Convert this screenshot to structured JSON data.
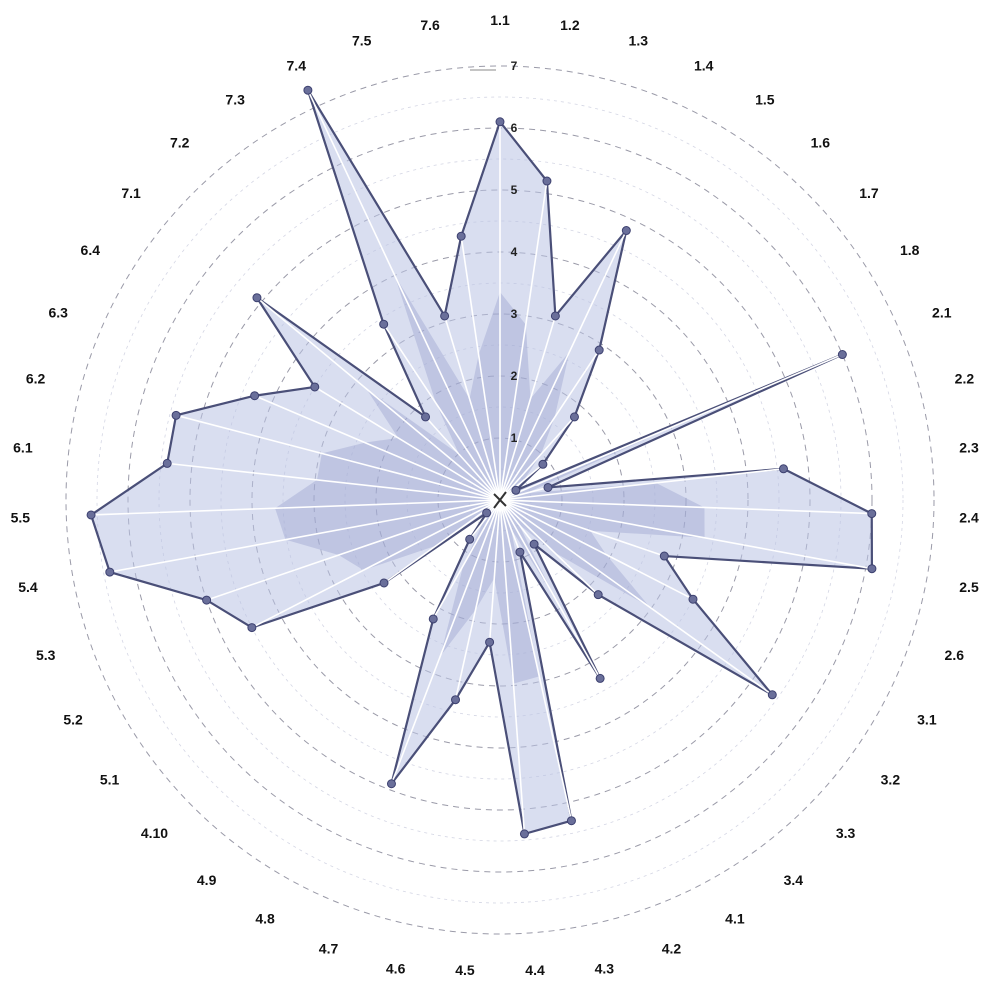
{
  "chart_data": {
    "type": "radar",
    "categories": [
      "1.1",
      "1.2",
      "1.3",
      "1.4",
      "1.5",
      "1.6",
      "1.7",
      "1.8",
      "2.1",
      "2.2",
      "2.3",
      "2.4",
      "2.5",
      "2.6",
      "3.1",
      "3.2",
      "3.3",
      "3.4",
      "4.1",
      "4.2",
      "4.3",
      "4.4",
      "4.5",
      "4.6",
      "4.7",
      "4.8",
      "4.9",
      "4.10",
      "5.1",
      "5.2",
      "5.3",
      "5.4",
      "5.5",
      "6.1",
      "6.2",
      "6.3",
      "6.4",
      "7.1",
      "7.2",
      "7.3",
      "7.4",
      "7.5",
      "7.6"
    ],
    "series": [
      {
        "values": [
          6.1,
          5.2,
          3.1,
          4.8,
          2.9,
          1.8,
          0.9,
          0.3,
          6.0,
          0.8,
          4.6,
          6.0,
          6.1,
          2.8,
          3.5,
          5.4,
          2.2,
          0.9,
          3.3,
          0.9,
          5.3,
          5.4,
          2.3,
          3.3,
          4.9,
          2.2,
          0.8,
          0.3,
          2.3,
          4.5,
          5.0,
          6.4,
          6.6,
          5.4,
          5.4,
          4.3,
          3.5,
          5.1,
          1.8,
          3.4,
          7.3,
          3.1,
          4.3
        ]
      }
    ],
    "rlim": [
      0,
      7
    ],
    "r_ticks": [
      "1",
      "2",
      "3",
      "4",
      "5",
      "6",
      "7"
    ],
    "grid": true
  },
  "tick_labels": [
    "1",
    "2",
    "3",
    "4",
    "5",
    "6",
    "7"
  ]
}
